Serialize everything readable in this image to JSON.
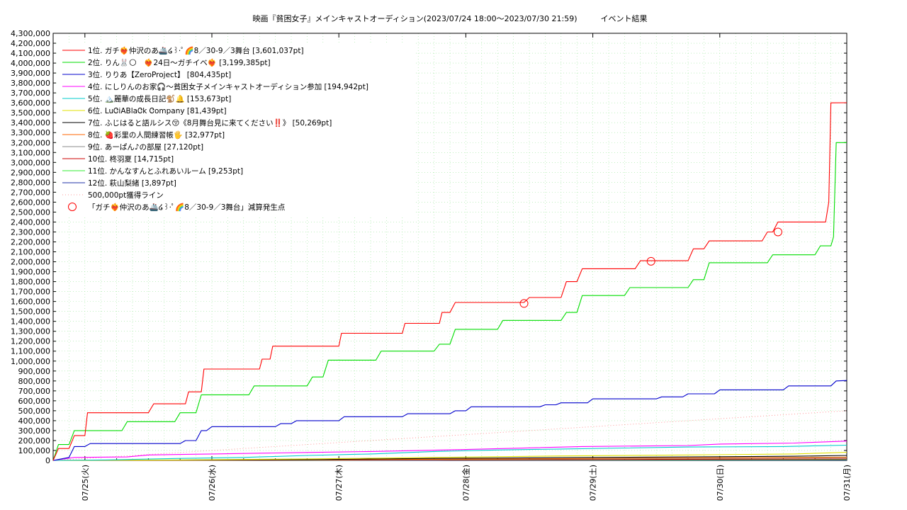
{
  "chart_data": {
    "type": "line",
    "title": "映画『貧困女子』メインキャストオーディション(2023/07/24 18:00～2023/07/30 21:59)　　　イベント結果",
    "xlabel": "",
    "ylabel": "",
    "x_start": "2023/07/24 18:00",
    "x_end": "2023/07/31 00:00",
    "xlim_hours": [
      0,
      150
    ],
    "ylim": [
      0,
      4300000
    ],
    "y_tick_step": 100000,
    "y_tick_labels": [
      "0",
      "100,000",
      "200,000",
      "300,000",
      "400,000",
      "500,000",
      "600,000",
      "700,000",
      "800,000",
      "900,000",
      "1,000,000",
      "1,100,000",
      "1,200,000",
      "1,300,000",
      "1,400,000",
      "1,500,000",
      "1,600,000",
      "1,700,000",
      "1,800,000",
      "1,900,000",
      "2,000,000",
      "2,100,000",
      "2,200,000",
      "2,300,000",
      "2,400,000",
      "2,500,000",
      "2,600,000",
      "2,700,000",
      "2,800,000",
      "2,900,000",
      "3,000,000",
      "3,100,000",
      "3,200,000",
      "3,300,000",
      "3,400,000",
      "3,500,000",
      "3,600,000",
      "3,700,000",
      "3,800,000",
      "3,900,000",
      "4,000,000",
      "4,100,000",
      "4,200,000",
      "4,300,000"
    ],
    "x_ticks": [
      {
        "hour": 6,
        "label": "07/25(火)"
      },
      {
        "hour": 30,
        "label": "07/26(水)"
      },
      {
        "hour": 54,
        "label": "07/27(木)"
      },
      {
        "hour": 78,
        "label": "07/28(金)"
      },
      {
        "hour": 102,
        "label": "07/29(土)"
      },
      {
        "hour": 126,
        "label": "07/30(日)"
      },
      {
        "hour": 150,
        "label": "07/31(月)"
      }
    ],
    "grid": true,
    "legend_position": "top-left",
    "series": [
      {
        "name": "1位. ガチ❤️‍🔥仲沢のあ🚢໒꒱·ﾟ🌈8／30-9／3舞台 [3,601,037pt]",
        "color": "#ff0000",
        "points": [
          [
            0,
            0
          ],
          [
            1,
            120000
          ],
          [
            3,
            120000
          ],
          [
            4,
            250000
          ],
          [
            6,
            250000
          ],
          [
            6.5,
            480000
          ],
          [
            18,
            480000
          ],
          [
            19,
            570000
          ],
          [
            25,
            570000
          ],
          [
            25.6,
            690000
          ],
          [
            28,
            690000
          ],
          [
            28.5,
            920000
          ],
          [
            39,
            920000
          ],
          [
            39.5,
            1020000
          ],
          [
            41,
            1020000
          ],
          [
            41.5,
            1150000
          ],
          [
            54,
            1150000
          ],
          [
            54.5,
            1280000
          ],
          [
            66,
            1280000
          ],
          [
            66.5,
            1380000
          ],
          [
            73,
            1380000
          ],
          [
            73.5,
            1490000
          ],
          [
            75,
            1490000
          ],
          [
            76,
            1590000
          ],
          [
            89,
            1590000
          ],
          [
            90,
            1640000
          ],
          [
            96,
            1640000
          ],
          [
            97,
            1800000
          ],
          [
            99,
            1800000
          ],
          [
            100,
            1930000
          ],
          [
            110,
            1930000
          ],
          [
            111,
            2010000
          ],
          [
            120,
            2010000
          ],
          [
            121,
            2130000
          ],
          [
            123,
            2130000
          ],
          [
            124,
            2210000
          ],
          [
            134,
            2210000
          ],
          [
            135,
            2300000
          ],
          [
            136,
            2300000
          ],
          [
            137,
            2400000
          ],
          [
            146,
            2400000
          ],
          [
            146.6,
            2600000
          ],
          [
            147,
            3600000
          ],
          [
            150,
            3601037
          ]
        ]
      },
      {
        "name": "2位. りん🐰🌕　❤️‍🔥24日〜ガチイベ❤️‍🔥 [3,199,385pt]",
        "color": "#00dd00",
        "points": [
          [
            0,
            0
          ],
          [
            1,
            160000
          ],
          [
            3,
            160000
          ],
          [
            4,
            300000
          ],
          [
            13,
            300000
          ],
          [
            14,
            390000
          ],
          [
            23,
            390000
          ],
          [
            24,
            480000
          ],
          [
            27,
            480000
          ],
          [
            28,
            660000
          ],
          [
            37,
            660000
          ],
          [
            38,
            750000
          ],
          [
            48,
            750000
          ],
          [
            49,
            840000
          ],
          [
            51,
            840000
          ],
          [
            52,
            1010000
          ],
          [
            61,
            1010000
          ],
          [
            62,
            1100000
          ],
          [
            72,
            1100000
          ],
          [
            73,
            1170000
          ],
          [
            75,
            1170000
          ],
          [
            76,
            1320000
          ],
          [
            84,
            1320000
          ],
          [
            85,
            1410000
          ],
          [
            96,
            1410000
          ],
          [
            97,
            1490000
          ],
          [
            99,
            1490000
          ],
          [
            100,
            1660000
          ],
          [
            108,
            1660000
          ],
          [
            109,
            1740000
          ],
          [
            120,
            1740000
          ],
          [
            121,
            1820000
          ],
          [
            123,
            1820000
          ],
          [
            124,
            1990000
          ],
          [
            135,
            1990000
          ],
          [
            136,
            2070000
          ],
          [
            144,
            2070000
          ],
          [
            145,
            2160000
          ],
          [
            147,
            2160000
          ],
          [
            147.5,
            2250000
          ],
          [
            148,
            3200000
          ],
          [
            150,
            3199385
          ]
        ]
      },
      {
        "name": "3位. りりあ【ZeroProject】 [804,435pt]",
        "color": "#0000cc",
        "points": [
          [
            0,
            0
          ],
          [
            3,
            30000
          ],
          [
            4,
            140000
          ],
          [
            6,
            140000
          ],
          [
            7,
            170000
          ],
          [
            24,
            170000
          ],
          [
            25,
            200000
          ],
          [
            27,
            200000
          ],
          [
            28,
            300000
          ],
          [
            29,
            300000
          ],
          [
            30,
            340000
          ],
          [
            42,
            340000
          ],
          [
            43,
            370000
          ],
          [
            45,
            370000
          ],
          [
            46,
            400000
          ],
          [
            54,
            400000
          ],
          [
            55,
            440000
          ],
          [
            66,
            440000
          ],
          [
            67,
            470000
          ],
          [
            75,
            470000
          ],
          [
            76,
            500000
          ],
          [
            78,
            500000
          ],
          [
            79,
            540000
          ],
          [
            92,
            540000
          ],
          [
            93,
            560000
          ],
          [
            95,
            560000
          ],
          [
            96,
            580000
          ],
          [
            101,
            580000
          ],
          [
            102,
            620000
          ],
          [
            114,
            620000
          ],
          [
            115,
            640000
          ],
          [
            119,
            640000
          ],
          [
            120,
            670000
          ],
          [
            125,
            670000
          ],
          [
            126,
            710000
          ],
          [
            138,
            710000
          ],
          [
            139,
            750000
          ],
          [
            147,
            750000
          ],
          [
            148,
            800000
          ],
          [
            150,
            804435
          ]
        ]
      },
      {
        "name": "4位. にしりんのお家🎧〜貧困女子メインキャストオーディション参加 [194,942pt]",
        "color": "#ff00ff",
        "points": [
          [
            0,
            0
          ],
          [
            4,
            30000
          ],
          [
            14,
            35000
          ],
          [
            18,
            55000
          ],
          [
            30,
            65000
          ],
          [
            48,
            80000
          ],
          [
            60,
            90000
          ],
          [
            78,
            110000
          ],
          [
            100,
            140000
          ],
          [
            120,
            150000
          ],
          [
            126,
            165000
          ],
          [
            140,
            175000
          ],
          [
            150,
            194942
          ]
        ]
      },
      {
        "name": "5位. 🏔️麗華の成長日記🐒🔔 [153,673pt]",
        "color": "#00cccc",
        "points": [
          [
            0,
            0
          ],
          [
            10,
            5000
          ],
          [
            24,
            20000
          ],
          [
            36,
            30000
          ],
          [
            48,
            50000
          ],
          [
            60,
            65000
          ],
          [
            72,
            90000
          ],
          [
            84,
            105000
          ],
          [
            96,
            115000
          ],
          [
            108,
            125000
          ],
          [
            120,
            135000
          ],
          [
            138,
            140000
          ],
          [
            150,
            153673
          ]
        ]
      },
      {
        "name": "6位. LuᏣiΑBlaᏣk Ꮳompany [81,439pt]",
        "color": "#e0e000",
        "points": [
          [
            0,
            0
          ],
          [
            24,
            5000
          ],
          [
            48,
            15000
          ],
          [
            72,
            30000
          ],
          [
            96,
            45000
          ],
          [
            120,
            55000
          ],
          [
            140,
            65000
          ],
          [
            150,
            81439
          ]
        ]
      },
      {
        "name": "7位. ふじはると語ルシス😚《8月舞台見に来てください‼️》 [50,269pt]",
        "color": "#000000",
        "points": [
          [
            0,
            0
          ],
          [
            24,
            3000
          ],
          [
            48,
            8000
          ],
          [
            72,
            20000
          ],
          [
            96,
            28000
          ],
          [
            120,
            35000
          ],
          [
            140,
            42000
          ],
          [
            150,
            50269
          ]
        ]
      },
      {
        "name": "8位. 🍓彩里の人間練習帳🖐 [32,977pt]",
        "color": "#ff6600",
        "points": [
          [
            0,
            0
          ],
          [
            24,
            2000
          ],
          [
            48,
            6000
          ],
          [
            72,
            12000
          ],
          [
            96,
            18000
          ],
          [
            120,
            24000
          ],
          [
            150,
            32977
          ]
        ]
      },
      {
        "name": "9位. あーぱん♪の部屋 [27,120pt]",
        "color": "#888888",
        "points": [
          [
            0,
            0
          ],
          [
            24,
            2000
          ],
          [
            48,
            5000
          ],
          [
            72,
            10000
          ],
          [
            96,
            15000
          ],
          [
            120,
            20000
          ],
          [
            150,
            27120
          ]
        ]
      },
      {
        "name": "10位. 柊羽夏 [14,715pt]",
        "color": "#cc0000",
        "points": [
          [
            0,
            0
          ],
          [
            48,
            3000
          ],
          [
            96,
            8000
          ],
          [
            150,
            14715
          ]
        ]
      },
      {
        "name": "11位. かんなすんとふれあいルーム [9,253pt]",
        "color": "#33ee33",
        "points": [
          [
            0,
            0
          ],
          [
            48,
            2000
          ],
          [
            96,
            5000
          ],
          [
            150,
            9253
          ]
        ]
      },
      {
        "name": "12位. 萩山梨緒 [3,897pt]",
        "color": "#2233aa",
        "points": [
          [
            0,
            0
          ],
          [
            72,
            1000
          ],
          [
            150,
            3897
          ]
        ]
      }
    ],
    "reference_line": {
      "name": "500,000pt獲得ライン",
      "color": "#ff9999",
      "points": [
        [
          0,
          0
        ],
        [
          150,
          500000
        ]
      ]
    },
    "markers": {
      "name": "「ガチ❤️‍🔥仲沢のあ🚢໒꒱·ﾟ🌈8／30-9／3舞台」減算発生点",
      "color": "#ff0000",
      "points": [
        [
          89,
          1580000
        ],
        [
          113,
          2005000
        ],
        [
          137,
          2300000
        ]
      ]
    }
  }
}
